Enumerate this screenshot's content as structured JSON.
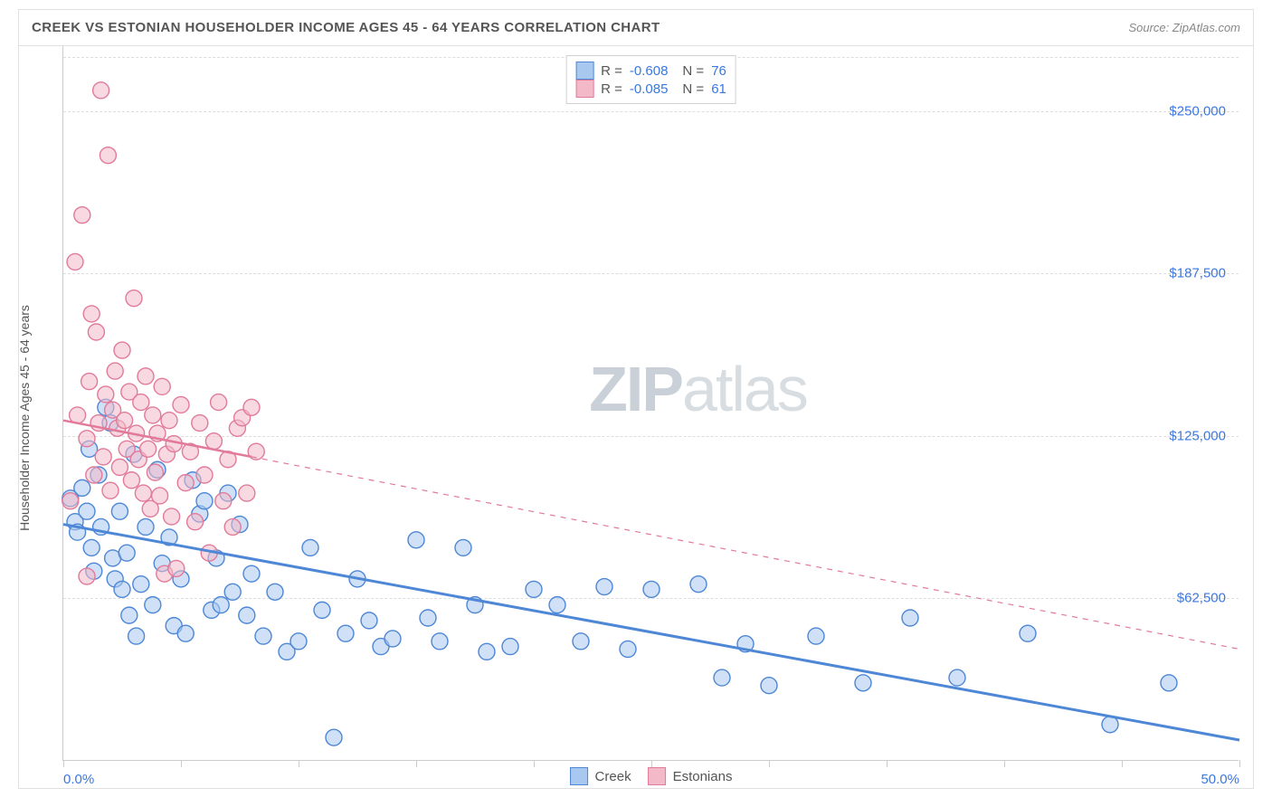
{
  "title": "CREEK VS ESTONIAN HOUSEHOLDER INCOME AGES 45 - 64 YEARS CORRELATION CHART",
  "source": "Source: ZipAtlas.com",
  "yaxis_label": "Householder Income Ages 45 - 64 years",
  "watermark": {
    "bold": "ZIP",
    "light": "atlas"
  },
  "chart": {
    "type": "scatter",
    "background_color": "#ffffff",
    "grid_color": "#dddddd",
    "axis_color": "#cccccc",
    "tick_text_color": "#3a77e0",
    "xlim": [
      0,
      50
    ],
    "ylim": [
      0,
      275000
    ],
    "xticks": [
      0,
      5,
      10,
      15,
      20,
      25,
      30,
      35,
      40,
      45,
      50
    ],
    "xtick_labels": {
      "0": "0.0%",
      "50": "50.0%"
    },
    "yticks": [
      62500,
      125000,
      187500,
      250000
    ],
    "ytick_labels": {
      "62500": "$62,500",
      "125000": "$125,000",
      "187500": "$187,500",
      "250000": "$250,000"
    },
    "marker_radius": 9,
    "marker_opacity": 0.55,
    "series": [
      {
        "name": "Creek",
        "color_fill": "#a9c8f0",
        "color_stroke": "#4d87d6",
        "R": -0.608,
        "N": 76,
        "trend": {
          "x1": 0,
          "y1": 91000,
          "x2": 50,
          "y2": 8000,
          "solid": true,
          "width": 3,
          "dash_extend": false
        },
        "points": [
          [
            0.3,
            101000
          ],
          [
            0.5,
            92000
          ],
          [
            0.6,
            88000
          ],
          [
            0.8,
            105000
          ],
          [
            1.0,
            96000
          ],
          [
            1.1,
            120000
          ],
          [
            1.2,
            82000
          ],
          [
            1.3,
            73000
          ],
          [
            1.5,
            110000
          ],
          [
            1.6,
            90000
          ],
          [
            1.8,
            136000
          ],
          [
            2.0,
            130000
          ],
          [
            2.1,
            78000
          ],
          [
            2.2,
            70000
          ],
          [
            2.4,
            96000
          ],
          [
            2.5,
            66000
          ],
          [
            2.7,
            80000
          ],
          [
            2.8,
            56000
          ],
          [
            3.0,
            118000
          ],
          [
            3.1,
            48000
          ],
          [
            3.3,
            68000
          ],
          [
            3.5,
            90000
          ],
          [
            3.8,
            60000
          ],
          [
            4.0,
            112000
          ],
          [
            4.2,
            76000
          ],
          [
            4.5,
            86000
          ],
          [
            4.7,
            52000
          ],
          [
            5.0,
            70000
          ],
          [
            5.2,
            49000
          ],
          [
            5.5,
            108000
          ],
          [
            5.8,
            95000
          ],
          [
            6.0,
            100000
          ],
          [
            6.3,
            58000
          ],
          [
            6.5,
            78000
          ],
          [
            6.7,
            60000
          ],
          [
            7.0,
            103000
          ],
          [
            7.2,
            65000
          ],
          [
            7.5,
            91000
          ],
          [
            7.8,
            56000
          ],
          [
            8.0,
            72000
          ],
          [
            8.5,
            48000
          ],
          [
            9.0,
            65000
          ],
          [
            9.5,
            42000
          ],
          [
            10.0,
            46000
          ],
          [
            10.5,
            82000
          ],
          [
            11.0,
            58000
          ],
          [
            11.5,
            9000
          ],
          [
            12.0,
            49000
          ],
          [
            12.5,
            70000
          ],
          [
            13.0,
            54000
          ],
          [
            13.5,
            44000
          ],
          [
            14.0,
            47000
          ],
          [
            15.0,
            85000
          ],
          [
            15.5,
            55000
          ],
          [
            16.0,
            46000
          ],
          [
            17.0,
            82000
          ],
          [
            17.5,
            60000
          ],
          [
            18.0,
            42000
          ],
          [
            19.0,
            44000
          ],
          [
            20.0,
            66000
          ],
          [
            21.0,
            60000
          ],
          [
            22.0,
            46000
          ],
          [
            23.0,
            67000
          ],
          [
            24.0,
            43000
          ],
          [
            25.0,
            66000
          ],
          [
            27.0,
            68000
          ],
          [
            28.0,
            32000
          ],
          [
            29.0,
            45000
          ],
          [
            30.0,
            29000
          ],
          [
            32.0,
            48000
          ],
          [
            34.0,
            30000
          ],
          [
            36.0,
            55000
          ],
          [
            38.0,
            32000
          ],
          [
            41.0,
            49000
          ],
          [
            44.5,
            14000
          ],
          [
            47.0,
            30000
          ]
        ]
      },
      {
        "name": "Estonians",
        "color_fill": "#f3b9c8",
        "color_stroke": "#e27a9a",
        "R": -0.085,
        "N": 61,
        "trend": {
          "x1": 0,
          "y1": 131000,
          "x2": 8,
          "y2": 117000,
          "solid": true,
          "width": 2.5,
          "dash_extend": true,
          "dash_x2": 50,
          "dash_y2": 43000
        },
        "points": [
          [
            0.3,
            100000
          ],
          [
            0.5,
            192000
          ],
          [
            0.6,
            133000
          ],
          [
            0.8,
            210000
          ],
          [
            1.0,
            124000
          ],
          [
            1.1,
            146000
          ],
          [
            1.2,
            172000
          ],
          [
            1.3,
            110000
          ],
          [
            1.4,
            165000
          ],
          [
            1.5,
            130000
          ],
          [
            1.6,
            258000
          ],
          [
            1.7,
            117000
          ],
          [
            1.8,
            141000
          ],
          [
            1.9,
            233000
          ],
          [
            2.0,
            104000
          ],
          [
            2.1,
            135000
          ],
          [
            2.2,
            150000
          ],
          [
            2.3,
            128000
          ],
          [
            2.4,
            113000
          ],
          [
            2.5,
            158000
          ],
          [
            2.6,
            131000
          ],
          [
            2.7,
            120000
          ],
          [
            2.8,
            142000
          ],
          [
            2.9,
            108000
          ],
          [
            3.0,
            178000
          ],
          [
            3.1,
            126000
          ],
          [
            3.2,
            116000
          ],
          [
            3.3,
            138000
          ],
          [
            3.4,
            103000
          ],
          [
            3.5,
            148000
          ],
          [
            3.6,
            120000
          ],
          [
            3.7,
            97000
          ],
          [
            3.8,
            133000
          ],
          [
            3.9,
            111000
          ],
          [
            4.0,
            126000
          ],
          [
            4.1,
            102000
          ],
          [
            4.2,
            144000
          ],
          [
            4.3,
            72000
          ],
          [
            4.4,
            118000
          ],
          [
            4.5,
            131000
          ],
          [
            4.6,
            94000
          ],
          [
            4.7,
            122000
          ],
          [
            4.8,
            74000
          ],
          [
            5.0,
            137000
          ],
          [
            5.2,
            107000
          ],
          [
            5.4,
            119000
          ],
          [
            5.6,
            92000
          ],
          [
            5.8,
            130000
          ],
          [
            6.0,
            110000
          ],
          [
            6.2,
            80000
          ],
          [
            6.4,
            123000
          ],
          [
            6.6,
            138000
          ],
          [
            6.8,
            100000
          ],
          [
            7.0,
            116000
          ],
          [
            7.2,
            90000
          ],
          [
            7.4,
            128000
          ],
          [
            7.6,
            132000
          ],
          [
            7.8,
            103000
          ],
          [
            8.0,
            136000
          ],
          [
            8.2,
            119000
          ],
          [
            1.0,
            71000
          ]
        ]
      }
    ]
  },
  "legend_bottom": [
    "Creek",
    "Estonians"
  ]
}
